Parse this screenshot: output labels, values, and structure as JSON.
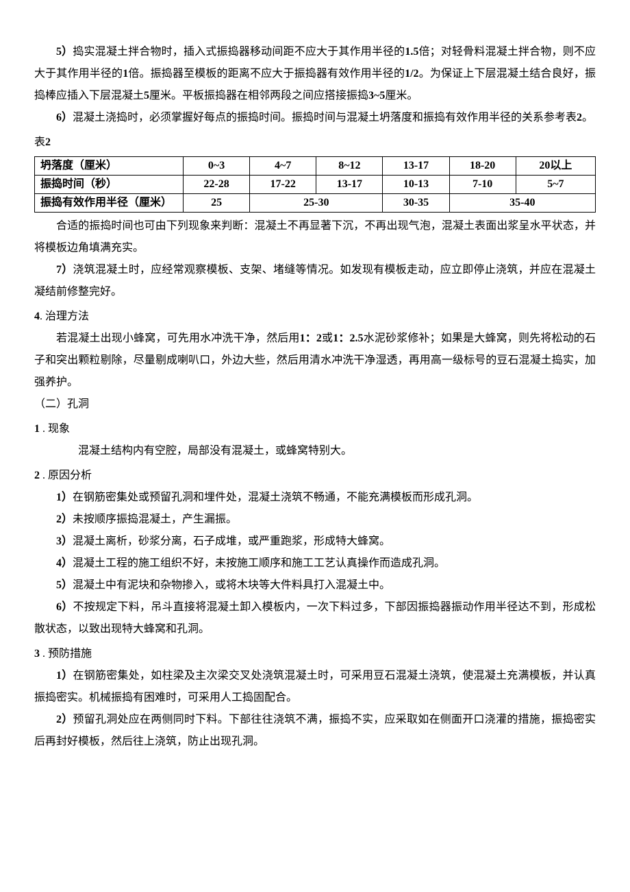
{
  "p1_prefix": "5）",
  "p1_a": "捣实混凝土拌合物时，插入式振捣器移动间距不应大于其作用半径的",
  "p1_b": "1.5",
  "p1_c": "倍；对轻骨料混凝土拌合物，则不应大于其作用半径的",
  "p1_d": "1",
  "p1_e": "倍。振捣器至模板的距离不应大于振捣器有效作用半径的",
  "p1_f": "1/2",
  "p1_g": "。为保证上下层混凝土结合良好，振捣棒应插入下层混凝土",
  "p1_h": "5",
  "p1_i": "厘米。平板振捣器在相邻两段之间应搭接振捣",
  "p1_j": "3~5",
  "p1_k": "厘米。",
  "p2_prefix": "6）",
  "p2_a": "混凝土浇捣时，必须掌握好每点的振捣时间。振捣时间与混凝土坍落度和振捣有效作用半径的关系参考表",
  "p2_b": "2",
  "p2_c": "。",
  "table_caption_a": "表",
  "table_caption_b": "2",
  "table": {
    "r1": {
      "label": "坍落度（厘米）",
      "c1": "0~3",
      "c2": "4~7",
      "c3": "8~12",
      "c4": "13-17",
      "c5": "18-20",
      "c6": "20以上"
    },
    "r2": {
      "label": "振捣时间（秒）",
      "c1": "22-28",
      "c2": "17-22",
      "c3": "13-17",
      "c4": "10-13",
      "c5": "7-10",
      "c6": "5~7"
    },
    "r3": {
      "label": "振捣有效作用半径（厘米）",
      "c1": "25",
      "c2": "25-30",
      "c3": "30-35",
      "c4": "35-40"
    }
  },
  "p3": "合适的振捣时间也可由下列现象来判断：混凝土不再显著下沉，不再出现气泡，混凝土表面出浆呈水平状态，并将模板边角填满充实。",
  "p4_prefix": "7）",
  "p4": "浇筑混凝土时，应经常观察模板、支架、堵缝等情况。如发现有模板走动，应立即停止浇筑，并应在混凝土凝结前修整完好。",
  "s4_num": "4",
  "s4_title": ". 治理方法",
  "p5_a": "若混凝土出现小蜂窝，可先用水冲洗干净，然后用",
  "p5_b": "1：2",
  "p5_c": "或",
  "p5_d": "1：2.5",
  "p5_e": "水泥砂浆修补；如果是大蜂窝，则先将松动的石子和突出颗粒剔除，尽量剔成喇叭口，外边大些，然后用清水冲洗干净湿透，再用高一级标号的豆石混凝土捣实，加强养护。",
  "sec2_title": "（二）孔洞",
  "s1_num": "1",
  "s1_title": " . 现象",
  "p6": "混凝土结构内有空腔，局部没有混凝土，或蜂窝特别大。",
  "s2_num": "2",
  "s2_title": " . 原因分析",
  "r1_prefix": "1）",
  "r1": "在钢筋密集处或预留孔洞和埋件处，混凝土浇筑不畅通，不能充满模板而形成孔洞。",
  "r2_prefix": "2）",
  "r2": "未按顺序振捣混凝土，产生漏振。",
  "r3_prefix": "3）",
  "r3": "混凝土离析，砂浆分离，石子成堆，或严重跑浆，形成特大蜂窝。",
  "r4_prefix": "4）",
  "r4": "混凝土工程的施工组织不好，未按施工顺序和施工工艺认真操作而造成孔洞。",
  "r5_prefix": "5）",
  "r5": "混凝土中有泥块和杂物掺入，或将木块等大件料具打入混凝土中。",
  "r6_prefix": "6）",
  "r6": "不按规定下料，吊斗直接将混凝土卸入模板内，一次下料过多，下部因振捣器振动作用半径达不到，形成松散状态，以致出现特大蜂窝和孔洞。",
  "s3_num": "3",
  "s3_title": " . 预防措施",
  "m1_prefix": "1）",
  "m1": "在钢筋密集处，如柱梁及主次梁交叉处浇筑混凝土时，可采用豆石混凝土浇筑，使混凝土充满模板，并认真振捣密实。机械振捣有困难时，可采用人工捣固配合。",
  "m2_prefix": "2）",
  "m2": "预留孔洞处应在两侧同时下料。下部往往浇筑不满，振捣不实，应采取如在侧面开口浇灌的措施，振捣密实后再封好模板，然后往上浇筑，防止出现孔洞。"
}
